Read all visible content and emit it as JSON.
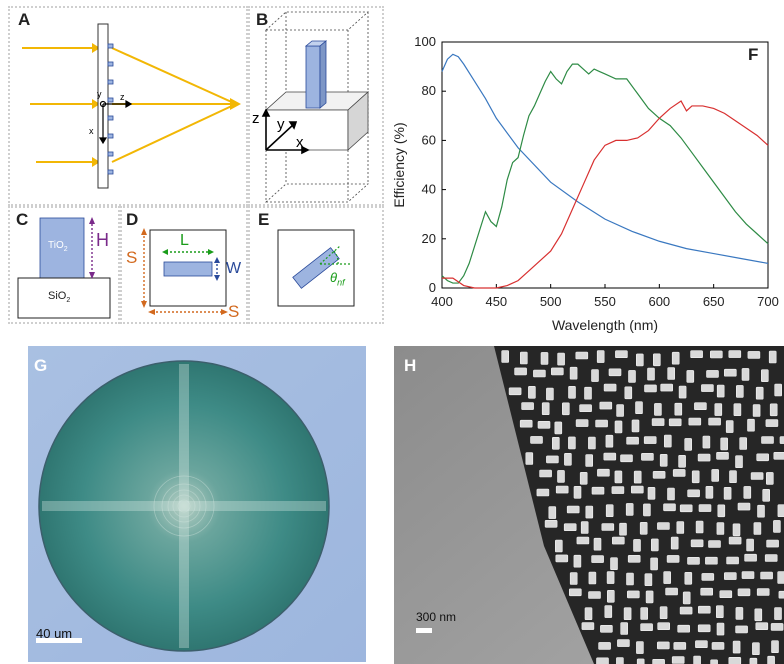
{
  "figure": {
    "panels": {
      "A": {
        "label": "A",
        "axis_y": "y",
        "axis_z": "z",
        "axis_x": "x"
      },
      "B": {
        "label": "B",
        "axis_z": "z",
        "axis_y": "y",
        "axis_x": "x"
      },
      "C": {
        "label": "C",
        "pillar_material": "TiO",
        "pillar_sub": "2",
        "substrate_material": "SiO",
        "substrate_sub": "2",
        "height_label": "H"
      },
      "D": {
        "label": "D",
        "length_label": "L",
        "width_label": "W",
        "period_label_left": "S",
        "period_label_bottom": "S"
      },
      "E": {
        "label": "E",
        "angle_symbol": "θ",
        "angle_sub": "nf"
      },
      "G": {
        "label": "G",
        "scale_bar_text": "40 um"
      },
      "H": {
        "label": "H",
        "scale_bar_text": "300 nm"
      }
    },
    "colors": {
      "arrow_yellow": "#f2b705",
      "pillar_blue": "#9db4e0",
      "green_dim": "#1a9c1a",
      "orange_dim": "#d2691e",
      "purple_dim": "#7a2a8a",
      "blue_dim": "#2a4a9a",
      "series_blue": "#3a78c0",
      "series_green": "#2e8b45",
      "series_red": "#d83030"
    }
  },
  "chart_data": {
    "type": "line",
    "panel_label": "F",
    "title": "",
    "xlabel": "Wavelength (nm)",
    "ylabel": "Efficiency (%)",
    "xlim": [
      400,
      700
    ],
    "ylim": [
      0,
      100
    ],
    "xticks": [
      400,
      450,
      500,
      550,
      600,
      650,
      700
    ],
    "yticks": [
      0,
      20,
      40,
      60,
      80,
      100
    ],
    "grid": false,
    "series": [
      {
        "name": "blue",
        "color": "#3a78c0",
        "x": [
          400,
          405,
          410,
          415,
          420,
          430,
          440,
          450,
          470,
          500,
          525,
          550,
          575,
          600,
          625,
          650,
          675,
          700
        ],
        "y": [
          88,
          93,
          95,
          94,
          91,
          84,
          77,
          69,
          57,
          43,
          35,
          28,
          23,
          19,
          16,
          14,
          12,
          10
        ]
      },
      {
        "name": "green",
        "color": "#2e8b45",
        "x": [
          400,
          405,
          410,
          415,
          420,
          425,
          430,
          435,
          440,
          445,
          450,
          455,
          460,
          465,
          470,
          475,
          480,
          485,
          490,
          495,
          500,
          505,
          510,
          515,
          520,
          525,
          530,
          535,
          540,
          545,
          550,
          560,
          570,
          580,
          590,
          600,
          610,
          620,
          630,
          640,
          650,
          660,
          670,
          680,
          690,
          700
        ],
        "y": [
          5,
          3,
          2,
          2,
          5,
          10,
          17,
          24,
          31,
          27,
          25,
          33,
          44,
          51,
          53,
          62,
          70,
          74,
          79,
          84,
          88,
          85,
          83,
          88,
          91,
          91,
          89,
          87,
          89,
          88,
          87,
          85,
          85,
          79,
          73,
          69,
          66,
          61,
          55,
          49,
          43,
          37,
          31,
          26,
          22,
          18
        ]
      },
      {
        "name": "red",
        "color": "#d83030",
        "x": [
          400,
          410,
          420,
          430,
          440,
          450,
          460,
          470,
          475,
          480,
          490,
          500,
          510,
          520,
          530,
          540,
          550,
          560,
          570,
          580,
          590,
          600,
          610,
          620,
          625,
          630,
          640,
          650,
          660,
          670,
          680,
          690,
          700
        ],
        "y": [
          4,
          4,
          1,
          0,
          0,
          0,
          1,
          3,
          5,
          7,
          11,
          15,
          22,
          32,
          42,
          52,
          58,
          60,
          60,
          61,
          64,
          69,
          73,
          76,
          72,
          74,
          74,
          73,
          71,
          68,
          65,
          62,
          58
        ]
      }
    ]
  }
}
